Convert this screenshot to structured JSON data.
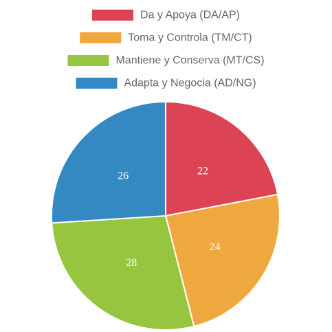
{
  "chart_data": {
    "type": "pie",
    "legend_position": "top",
    "categories": [
      "Da y Apoya (DA/AP)",
      "Toma y Controla (TM/CT)",
      "Mantiene y Conserva (MT/CS)",
      "Adapta y Negocia (AD/NG)"
    ],
    "values": [
      22,
      24,
      28,
      26
    ],
    "colors": [
      "#dc4455",
      "#efa83d",
      "#96c53f",
      "#3489c3"
    ],
    "slice_labels": [
      "22",
      "24",
      "28",
      "26"
    ]
  }
}
